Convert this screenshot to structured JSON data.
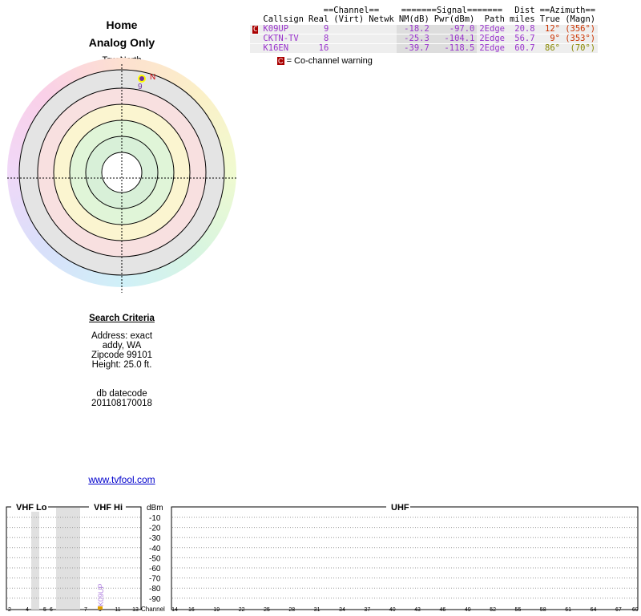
{
  "header": {
    "title": "Home",
    "subtitle": "Analog Only"
  },
  "polar": {
    "north_label": "TrueNorth",
    "marker_letter": "N",
    "marker_channel": "9"
  },
  "table": {
    "group_headers": [
      "==Channel==",
      "=======Signal=======",
      "Dist",
      "==Azimuth=="
    ],
    "columns": [
      "Callsign",
      "Real",
      "(Virt)",
      "Netwk",
      "NM(dB)",
      "Pwr(dBm)",
      "Path",
      "miles",
      "True",
      "(Magn)"
    ],
    "rows": [
      [
        "K09UP",
        "9",
        "",
        "",
        "-18.2",
        "-97.0",
        "2Edge",
        "20.8",
        "12°",
        "(356°)"
      ],
      [
        "CKTN-TV",
        "8",
        "",
        "",
        "-25.3",
        "-104.1",
        "2Edge",
        "56.7",
        "9°",
        "(353°)"
      ],
      [
        "K16EN",
        "16",
        "",
        "",
        "-39.7",
        "-118.5",
        "2Edge",
        "60.7",
        "86°",
        "(70°)"
      ]
    ],
    "row_badge": "C"
  },
  "warning": {
    "badge": "C",
    "text": "= Co-channel warning"
  },
  "search": {
    "title": "Search Criteria",
    "lines": [
      "Address: exact",
      "addy, WA",
      "Zipcode 99101",
      "Height: 25.0 ft."
    ],
    "datecode_label": "db datecode",
    "datecode": "201108170018"
  },
  "link": "www.tvfool.com",
  "spectrum": {
    "vhf_lo": "VHF Lo",
    "vhf_hi": "VHF Hi",
    "uhf": "UHF",
    "dbm_label": "dBm",
    "dbm_ticks": [
      "-10",
      "-20",
      "-30",
      "-40",
      "-50",
      "-60",
      "-70",
      "-80",
      "-90"
    ],
    "channel_label": "Channel",
    "vhf_channels": [
      "2",
      "4",
      "5",
      "6",
      "7",
      "9",
      "11",
      "13"
    ],
    "uhf_channels": [
      "14",
      "16",
      "19",
      "22",
      "25",
      "28",
      "31",
      "34",
      "37",
      "40",
      "43",
      "46",
      "49",
      "52",
      "55",
      "58",
      "61",
      "64",
      "67",
      "69"
    ],
    "station_label": "K09UP"
  }
}
